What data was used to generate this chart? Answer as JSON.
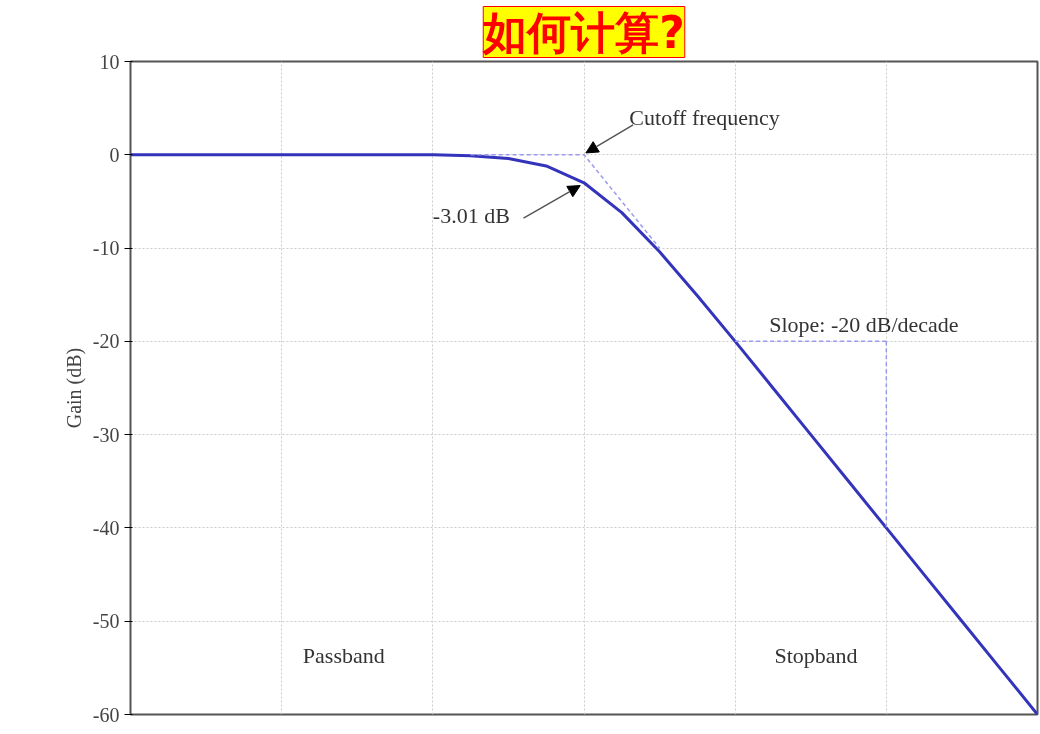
{
  "chart_data": {
    "type": "line",
    "title": "如何计算?",
    "ylabel": "Gain (dB)",
    "categories": [
      null,
      null,
      null,
      null,
      null,
      null,
      null,
      null,
      null,
      null,
      null,
      null,
      null,
      null,
      null,
      null,
      null,
      null,
      null,
      null,
      null,
      null,
      null,
      null,
      null
    ],
    "series": [
      {
        "color": "#3333bb",
        "values": [
          0,
          0,
          0,
          0,
          0,
          0,
          0,
          0,
          0,
          -0.1,
          -0.4,
          -1.2,
          -3,
          -6.2,
          -10.4,
          -15.1,
          -20,
          -25,
          -30,
          -35,
          -40,
          -45,
          -50,
          -55,
          -60
        ]
      },
      {
        "color": "#9999ee",
        "line_style": "dashed",
        "values": [
          null,
          null,
          null,
          null,
          null,
          null,
          null,
          null,
          null,
          0,
          0,
          0,
          0,
          -5,
          -10,
          null,
          null,
          null,
          null,
          null,
          null,
          null,
          null,
          null,
          null
        ]
      },
      {
        "color": "#9999ee",
        "line_style": "dashed",
        "values": [
          null,
          null,
          null,
          null,
          null,
          null,
          null,
          null,
          null,
          null,
          null,
          null,
          null,
          null,
          null,
          null,
          -20,
          -20,
          -20,
          -20,
          -20,
          null,
          null,
          null,
          null
        ]
      }
    ],
    "ylim": [
      -60,
      10
    ],
    "yticks": [
      10,
      0,
      -10,
      -20,
      -30,
      -40,
      -50,
      -60
    ],
    "grid": true,
    "annotations": [
      "Cutoff frequency",
      "-3.01 dB",
      "Slope: -20 dB/decade",
      "Passband",
      "Stopband"
    ]
  }
}
